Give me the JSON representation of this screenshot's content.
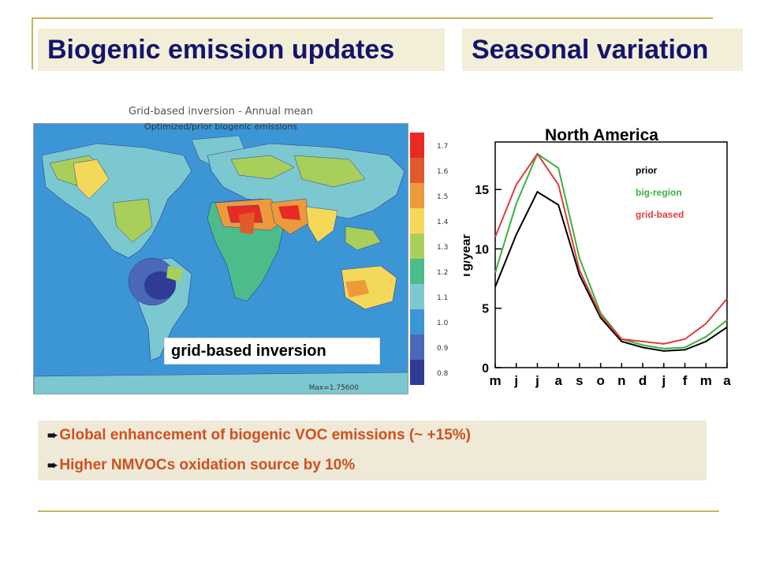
{
  "titles": {
    "left": "Biogenic emission updates",
    "right": "Seasonal variation"
  },
  "map": {
    "title": "Grid-based inversion - Annual mean",
    "subtitle": "Optimized/prior biogenic emissions",
    "max_label": "Max=1.75600",
    "overlay_label": "grid-based inversion",
    "colorbar": {
      "ticks": [
        "1.7",
        "1.6",
        "1.5",
        "1.4",
        "1.3",
        "1.2",
        "1.1",
        "1.0",
        "0.9",
        "0.8"
      ],
      "colors": [
        "#e82a24",
        "#e05a2a",
        "#ec9a3c",
        "#f4d85a",
        "#a8cf5a",
        "#4cbc8a",
        "#7cc8d0",
        "#3c96d6",
        "#4a68b6",
        "#2e3c96"
      ]
    }
  },
  "chart_data": {
    "type": "line",
    "title": "North America",
    "ylabel": "Tg/year",
    "xlabel": "",
    "categories": [
      "m",
      "j",
      "j",
      "a",
      "s",
      "o",
      "n",
      "d",
      "j",
      "f",
      "m",
      "a"
    ],
    "ylim": [
      0,
      19
    ],
    "yticks": [
      0,
      5,
      10,
      15
    ],
    "legend_position": "top-right",
    "series": [
      {
        "name": "prior",
        "color": "#000000",
        "values": [
          6.8,
          11.2,
          14.8,
          13.7,
          7.8,
          4.2,
          2.2,
          1.7,
          1.4,
          1.5,
          2.2,
          3.4
        ]
      },
      {
        "name": "big-region",
        "color": "#3cb23c",
        "values": [
          8.0,
          13.8,
          18.0,
          16.8,
          9.2,
          4.6,
          2.4,
          1.9,
          1.6,
          1.7,
          2.6,
          4.0
        ]
      },
      {
        "name": "grid-based",
        "color": "#e03c3c",
        "values": [
          11.0,
          15.4,
          18.0,
          15.4,
          8.2,
          4.4,
          2.4,
          2.2,
          2.0,
          2.4,
          3.7,
          5.8
        ]
      }
    ]
  },
  "bullets": [
    "Global enhancement of biogenic VOC emissions (~ +15%)",
    "Higher NMVOCs oxidation source by 10%"
  ]
}
